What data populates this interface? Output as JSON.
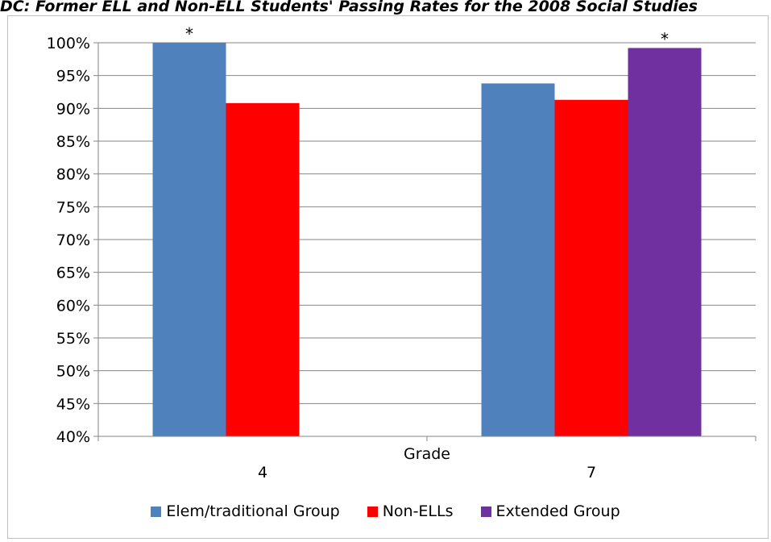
{
  "title": "DC: Former ELL and Non-ELL Students' Passing Rates for the 2008 Social Studies",
  "chart_data": {
    "type": "bar",
    "categories": [
      "4",
      "7"
    ],
    "xlabel": "Grade",
    "ylabel": "",
    "ylim": [
      40,
      100
    ],
    "yticks": [
      "100%",
      "95%",
      "90%",
      "85%",
      "80%",
      "75%",
      "70%",
      "65%",
      "60%",
      "55%",
      "50%",
      "45%",
      "40%"
    ],
    "ytick_values": [
      100,
      95,
      90,
      85,
      80,
      75,
      70,
      65,
      60,
      55,
      50,
      45,
      40
    ],
    "grid": true,
    "legend_position": "bottom",
    "series": [
      {
        "name": "Elem/traditional Group",
        "color": "#4f81bd",
        "values": [
          100,
          93.8
        ],
        "annotations": [
          "*",
          ""
        ]
      },
      {
        "name": "Non-ELLs",
        "color": "#ff0000",
        "values": [
          90.8,
          91.3
        ],
        "annotations": [
          "",
          ""
        ]
      },
      {
        "name": "Extended Group",
        "color": "#7030a0",
        "values": [
          null,
          99.2
        ],
        "annotations": [
          "",
          "*"
        ]
      }
    ]
  }
}
